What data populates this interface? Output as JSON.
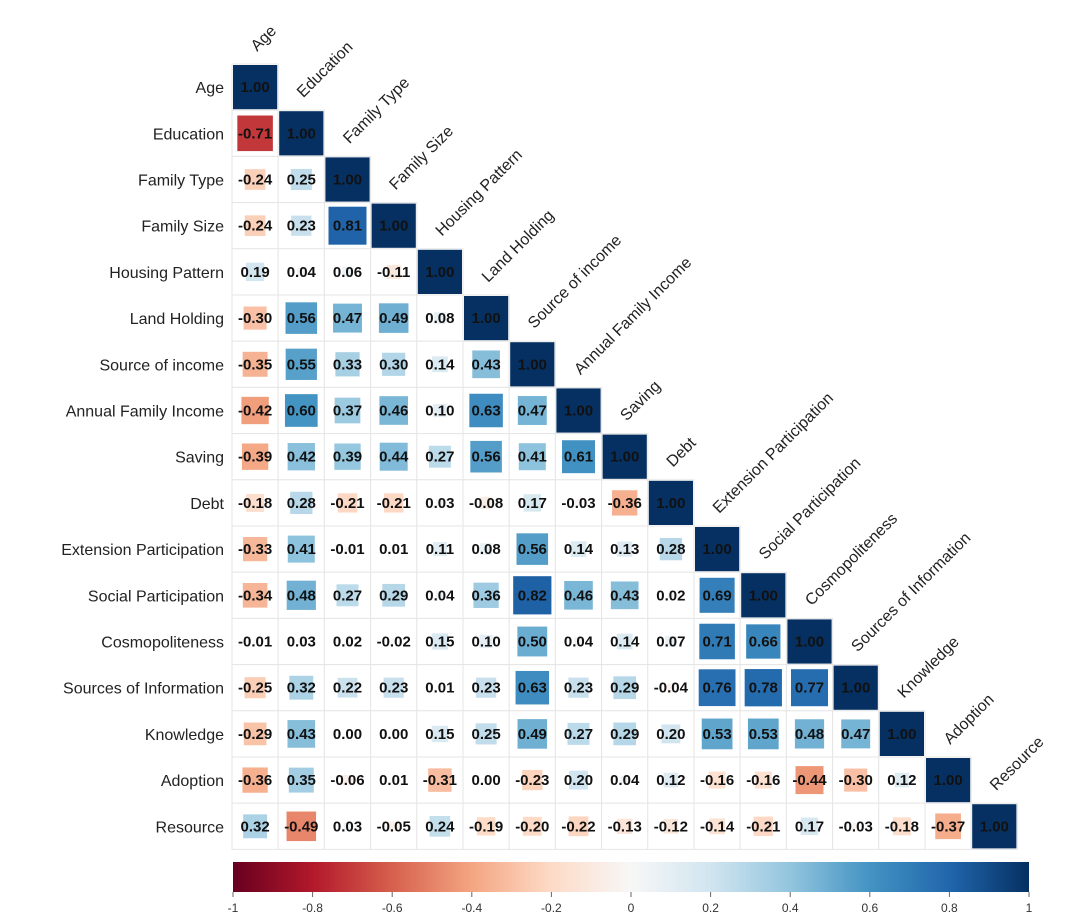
{
  "chart_data": {
    "type": "heatmap",
    "title": "",
    "variables": [
      "Age",
      "Education",
      "Family Type",
      "Family Size",
      "Housing Pattern",
      "Land Holding",
      "Source of income",
      "Annual Family Income",
      "Saving",
      "Debt",
      "Extension Participation",
      "Social Participation",
      "Cosmopoliteness",
      "Sources of Information",
      "Knowledge",
      "Adoption",
      "Resource"
    ],
    "matrix": [
      [
        1.0
      ],
      [
        -0.71,
        1.0
      ],
      [
        -0.24,
        0.25,
        1.0
      ],
      [
        -0.24,
        0.23,
        0.81,
        1.0
      ],
      [
        0.19,
        0.04,
        0.06,
        -0.11,
        1.0
      ],
      [
        -0.3,
        0.56,
        0.47,
        0.49,
        0.08,
        1.0
      ],
      [
        -0.35,
        0.55,
        0.33,
        0.3,
        0.14,
        0.43,
        1.0
      ],
      [
        -0.42,
        0.6,
        0.37,
        0.46,
        0.1,
        0.63,
        0.47,
        1.0
      ],
      [
        -0.39,
        0.42,
        0.39,
        0.44,
        0.27,
        0.56,
        0.41,
        0.61,
        1.0
      ],
      [
        -0.18,
        0.28,
        -0.21,
        -0.21,
        0.03,
        -0.08,
        0.17,
        -0.03,
        -0.36,
        1.0
      ],
      [
        -0.33,
        0.41,
        -0.01,
        0.01,
        0.11,
        0.08,
        0.56,
        0.14,
        0.13,
        0.28,
        1.0
      ],
      [
        -0.34,
        0.48,
        0.27,
        0.29,
        0.04,
        0.36,
        0.82,
        0.46,
        0.43,
        0.02,
        0.69,
        1.0
      ],
      [
        -0.01,
        0.03,
        0.02,
        -0.02,
        0.15,
        0.1,
        0.5,
        0.04,
        0.14,
        0.07,
        0.71,
        0.66,
        1.0
      ],
      [
        -0.25,
        0.32,
        0.22,
        0.23,
        0.01,
        0.23,
        0.63,
        0.23,
        0.29,
        -0.04,
        0.76,
        0.78,
        0.77,
        1.0
      ],
      [
        -0.29,
        0.43,
        0.0,
        0.0,
        0.15,
        0.25,
        0.49,
        0.27,
        0.29,
        0.2,
        0.53,
        0.53,
        0.48,
        0.47,
        1.0
      ],
      [
        -0.36,
        0.35,
        -0.06,
        0.01,
        -0.31,
        0.0,
        -0.23,
        0.2,
        0.04,
        0.12,
        -0.16,
        -0.16,
        -0.44,
        -0.3,
        0.12,
        1.0
      ],
      [
        0.32,
        -0.49,
        0.03,
        -0.05,
        0.24,
        -0.19,
        -0.2,
        -0.22,
        -0.13,
        -0.12,
        -0.14,
        -0.21,
        0.17,
        -0.03,
        -0.18,
        -0.37,
        1.0
      ]
    ],
    "colorbar": {
      "range": [
        -1,
        1
      ],
      "ticks": [
        "-1",
        "-0.8",
        "-0.6",
        "-0.4",
        "-0.2",
        "0",
        "0.2",
        "0.4",
        "0.6",
        "0.8",
        "1"
      ],
      "colors": {
        "negative": "#67001f",
        "neutral": "#f7f7f7",
        "positive": "#053061"
      }
    },
    "layout": "lower-triangle",
    "grid": true
  }
}
